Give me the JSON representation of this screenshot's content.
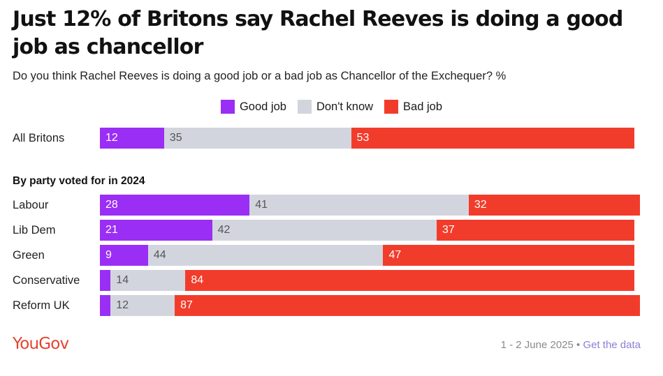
{
  "title": "Just 12% of Britons say Rachel Reeves is doing a good job as chancellor",
  "subtitle": "Do you think Rachel Reeves is doing a good job or a bad job as Chancellor of the Exchequer? %",
  "colors": {
    "good": "#9a2ef5",
    "dont_know": "#d3d5de",
    "bad": "#f23c2b"
  },
  "chart_data": {
    "type": "bar",
    "orientation": "horizontal",
    "stacked": true,
    "legend_position": "top",
    "series": [
      {
        "name": "Good job",
        "color": "#9a2ef5"
      },
      {
        "name": "Don't know",
        "color": "#d3d5de"
      },
      {
        "name": "Bad job",
        "color": "#f23c2b"
      }
    ],
    "groups": [
      {
        "label": "",
        "rows": [
          {
            "category": "All Britons",
            "values": [
              12,
              35,
              53
            ]
          }
        ]
      },
      {
        "label": "By party voted for in 2024",
        "rows": [
          {
            "category": "Labour",
            "values": [
              28,
              41,
              32
            ]
          },
          {
            "category": "Lib Dem",
            "values": [
              21,
              42,
              37
            ]
          },
          {
            "category": "Green",
            "values": [
              9,
              44,
              47
            ]
          },
          {
            "category": "Conservative",
            "values": [
              2,
              14,
              84
            ]
          },
          {
            "category": "Reform UK",
            "values": [
              2,
              12,
              87
            ]
          }
        ]
      }
    ],
    "label_threshold": 5
  },
  "footer": {
    "logo": "YouGov",
    "date": "1 - 2 June 2025",
    "separator": " • ",
    "link": "Get the data"
  }
}
